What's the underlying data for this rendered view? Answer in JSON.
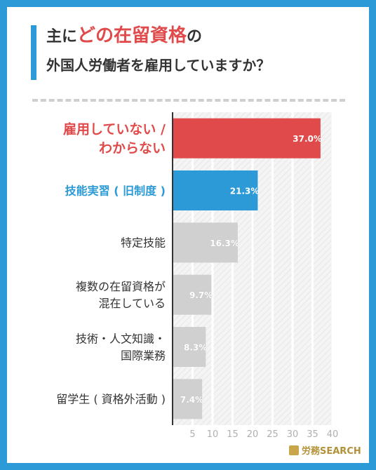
{
  "title": {
    "line1_before": "主に",
    "line1_highlight": "どの在留資格",
    "line1_after": "の",
    "line2": "外国人労働者を雇用していますか？"
  },
  "brand": "労務SEARCH",
  "chart_data": {
    "type": "bar",
    "orientation": "horizontal",
    "categories": [
      [
        "雇用していない /",
        "わからない"
      ],
      [
        "技能実習 ( 旧制度 )"
      ],
      [
        "特定技能"
      ],
      [
        "複数の在留資格が",
        "混在している"
      ],
      [
        "技術・人文知識・",
        "国際業務"
      ],
      [
        "留学生 ( 資格外活動 )"
      ]
    ],
    "values": [
      37.0,
      21.3,
      16.3,
      9.7,
      8.3,
      7.4
    ],
    "value_labels": [
      "37.0%",
      "21.3%",
      "16.3%",
      "9.7%",
      "8.3%",
      "7.4%"
    ],
    "xlim": [
      0,
      40
    ],
    "x_ticks": [
      "5",
      "10",
      "15",
      "20",
      "25",
      "30",
      "35",
      "40"
    ],
    "grid": true,
    "colors": {
      "highlight": "#e04a4a",
      "accent": "#2c9ad6",
      "default": "#d0d0d0",
      "label_default": "#333333",
      "value_default": "#ffffff"
    },
    "bar_styles": [
      "highlight",
      "accent",
      "default",
      "default",
      "default",
      "default"
    ]
  }
}
